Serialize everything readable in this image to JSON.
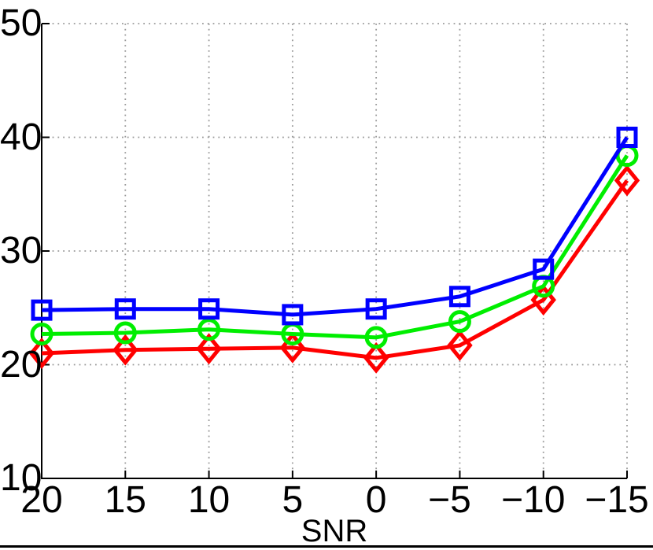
{
  "chart_data": {
    "type": "line",
    "title": "",
    "xlabel": "SNR",
    "ylabel": "",
    "x": [
      20,
      15,
      10,
      5,
      0,
      -5,
      -10,
      -15
    ],
    "x_tick_labels": [
      "20",
      "15",
      "10",
      "5",
      "0",
      "−5",
      "−10",
      "−15"
    ],
    "x_axis_note": "SNR decreases left to right",
    "y_ticks": [
      10,
      20,
      30,
      40,
      50
    ],
    "ylim": [
      10,
      50
    ],
    "grid": "dotted",
    "legend": "none",
    "series": [
      {
        "name": "blue-squares",
        "marker": "square",
        "color": "#0000ff",
        "values": [
          24.8,
          24.9,
          24.9,
          24.4,
          24.9,
          26.0,
          28.4,
          40.0
        ]
      },
      {
        "name": "green-circles",
        "marker": "circle",
        "color": "#00ee00",
        "values": [
          22.7,
          22.8,
          23.1,
          22.7,
          22.4,
          23.8,
          26.9,
          38.4
        ]
      },
      {
        "name": "red-diamonds",
        "marker": "diamond",
        "color": "#ff0000",
        "values": [
          21.0,
          21.3,
          21.4,
          21.5,
          20.6,
          21.7,
          25.7,
          36.2
        ]
      }
    ],
    "colors": {
      "axis": "#000000",
      "grid": "#999999",
      "background": "#ffffff"
    }
  }
}
